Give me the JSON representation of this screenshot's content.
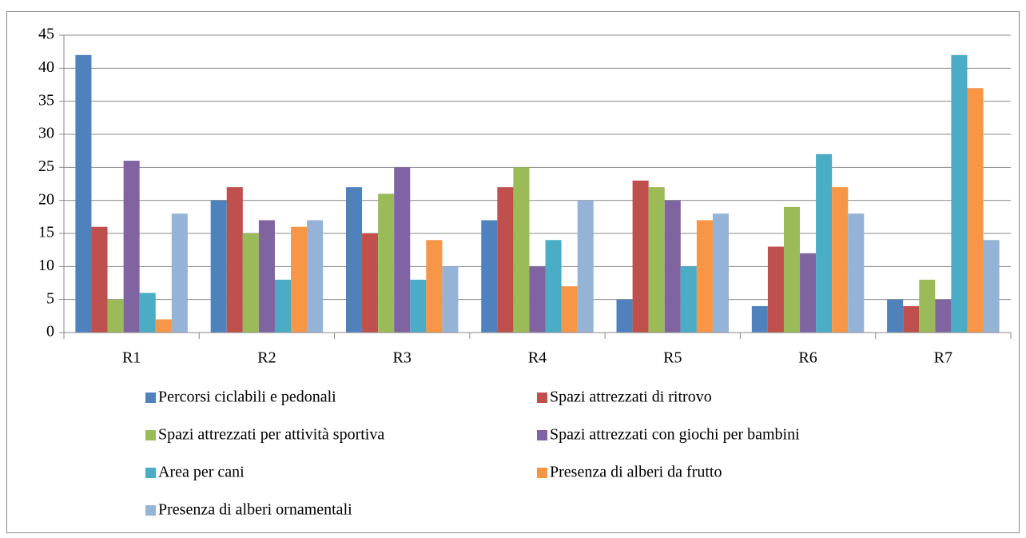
{
  "chart_data": {
    "type": "bar",
    "categories": [
      "R1",
      "R2",
      "R3",
      "R4",
      "R5",
      "R6",
      "R7"
    ],
    "series": [
      {
        "name": "Percorsi ciclabili e pedonali",
        "color": "#4f81bd",
        "values": [
          42,
          20,
          22,
          17,
          5,
          4,
          5
        ]
      },
      {
        "name": "Spazi attrezzati di ritrovo",
        "color": "#c0504d",
        "values": [
          16,
          22,
          15,
          22,
          23,
          13,
          4
        ]
      },
      {
        "name": "Spazi attrezzati per attività sportiva",
        "color": "#9bbb59",
        "values": [
          5,
          15,
          21,
          25,
          22,
          19,
          8
        ]
      },
      {
        "name": "Spazi attrezzati con giochi per bambini",
        "color": "#8064a2",
        "values": [
          26,
          17,
          25,
          10,
          20,
          12,
          5
        ]
      },
      {
        "name": "Area per cani",
        "color": "#4bacc6",
        "values": [
          6,
          8,
          8,
          14,
          10,
          27,
          42
        ]
      },
      {
        "name": "Presenza di alberi da frutto",
        "color": "#f79646",
        "values": [
          2,
          16,
          14,
          7,
          17,
          22,
          37
        ]
      },
      {
        "name": "Presenza di alberi ornamentali",
        "color": "#95b3d7",
        "values": [
          18,
          17,
          10,
          20,
          18,
          18,
          14
        ]
      }
    ],
    "ylim": [
      0,
      45
    ],
    "yticks": [
      0,
      5,
      10,
      15,
      20,
      25,
      30,
      35,
      40,
      45
    ],
    "grid": true,
    "legend": "bottom"
  }
}
